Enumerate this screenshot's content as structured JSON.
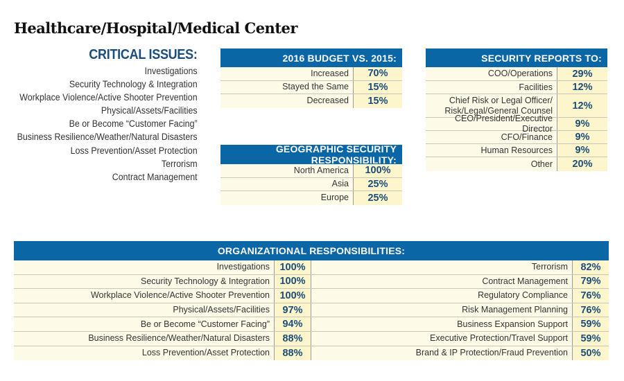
{
  "title": "Healthcare/Hospital/Medical Center",
  "critical_issues": {
    "heading": "CRITICAL ISSUES:",
    "items": [
      "Investigations",
      "Security Technology & Integration",
      "Workplace Violence/Active Shooter Prevention",
      "Physical/Assets/Facilities",
      "Be or Become “Customer Facing”",
      "Business Resilience/Weather/Natural Disasters",
      "Loss Prevention/Asset Protection",
      "Terrorism",
      "Contract Management"
    ]
  },
  "budget": {
    "heading": "2016 BUDGET VS. 2015:",
    "rows": [
      {
        "label": "Increased",
        "value": "70%"
      },
      {
        "label": "Stayed the Same",
        "value": "15%"
      },
      {
        "label": "Decreased",
        "value": "15%"
      }
    ]
  },
  "geographic": {
    "heading": "GEOGRAPHIC SECURITY RESPONSIBILITY:",
    "rows": [
      {
        "label": "North America",
        "value": "100%"
      },
      {
        "label": "Asia",
        "value": "25%"
      },
      {
        "label": "Europe",
        "value": "25%"
      }
    ]
  },
  "reports_to": {
    "heading": "SECURITY REPORTS TO:",
    "rows": [
      {
        "label": "COO/Operations",
        "value": "29%"
      },
      {
        "label": "Facilities",
        "value": "12%"
      },
      {
        "label": "Chief Risk or Legal Officer/\nRisk/Legal/General Counsel",
        "value": "12%"
      },
      {
        "label": "CEO/President/Executive Director",
        "value": "9%"
      },
      {
        "label": "CFO/Finance",
        "value": "9%"
      },
      {
        "label": "Human Resources",
        "value": "9%"
      },
      {
        "label": "Other",
        "value": "20%"
      }
    ]
  },
  "org": {
    "heading": "ORGANIZATIONAL RESPONSIBILITIES:",
    "left": [
      {
        "label": "Investigations",
        "value": "100%"
      },
      {
        "label": "Security Technology & Integration",
        "value": "100%"
      },
      {
        "label": "Workplace Violence/Active Shooter Prevention",
        "value": "100%"
      },
      {
        "label": "Physical/Assets/Facilities",
        "value": "97%"
      },
      {
        "label": "Be or Become “Customer Facing”",
        "value": "94%"
      },
      {
        "label": "Business Resilience/Weather/Natural Disasters",
        "value": "88%"
      },
      {
        "label": "Loss Prevention/Asset Protection",
        "value": "88%"
      }
    ],
    "right": [
      {
        "label": "Terrorism",
        "value": "82%"
      },
      {
        "label": "Contract Management",
        "value": "79%"
      },
      {
        "label": "Regulatory Compliance",
        "value": "76%"
      },
      {
        "label": "Risk Management Planning",
        "value": "76%"
      },
      {
        "label": "Business Expansion Support",
        "value": "59%"
      },
      {
        "label": "Executive Protection/Travel Support",
        "value": "59%"
      },
      {
        "label": "Brand & IP Protection/Fraud Prevention",
        "value": "50%"
      }
    ]
  },
  "colors": {
    "header_blue": "#0b66a6",
    "row_bg": "#fdfbe8",
    "value_bg": "#fdf6cc",
    "value_text": "#1b4d7a"
  }
}
